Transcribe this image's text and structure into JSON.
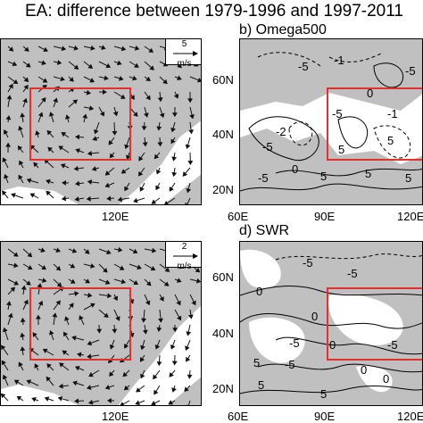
{
  "title": "EA: difference between 1979-1996 and 1997-2011",
  "panels": {
    "a": {
      "ref_value": "5",
      "ref_unit": "m/s",
      "x_ticks": [
        "120E"
      ]
    },
    "b": {
      "label": "b) Omega500",
      "y_ticks": [
        "60N",
        "40N",
        "20N"
      ],
      "x_ticks": [
        "60E",
        "90E",
        "120E"
      ],
      "contour_labels": [
        "-5",
        "-1",
        "0",
        "-5",
        "-2",
        "-5",
        "-1",
        "5",
        "0",
        "5",
        "-5",
        "-5",
        "5",
        "5",
        "5"
      ]
    },
    "c": {
      "ref_value": "2",
      "ref_unit": "m/s",
      "x_ticks": [
        "120E"
      ]
    },
    "d": {
      "label": "d) SWR",
      "y_ticks": [
        "60N",
        "40N",
        "20N"
      ],
      "x_ticks": [
        "60E",
        "90E",
        "120E"
      ],
      "contour_labels": [
        "-5",
        "0",
        "-5",
        "0",
        "-5",
        "0",
        "5",
        "0",
        "-5",
        "-5",
        "5",
        "0",
        "5"
      ]
    }
  },
  "colors": {
    "shading": "#c0c0c0",
    "box": "#e53030",
    "line": "#000000"
  }
}
